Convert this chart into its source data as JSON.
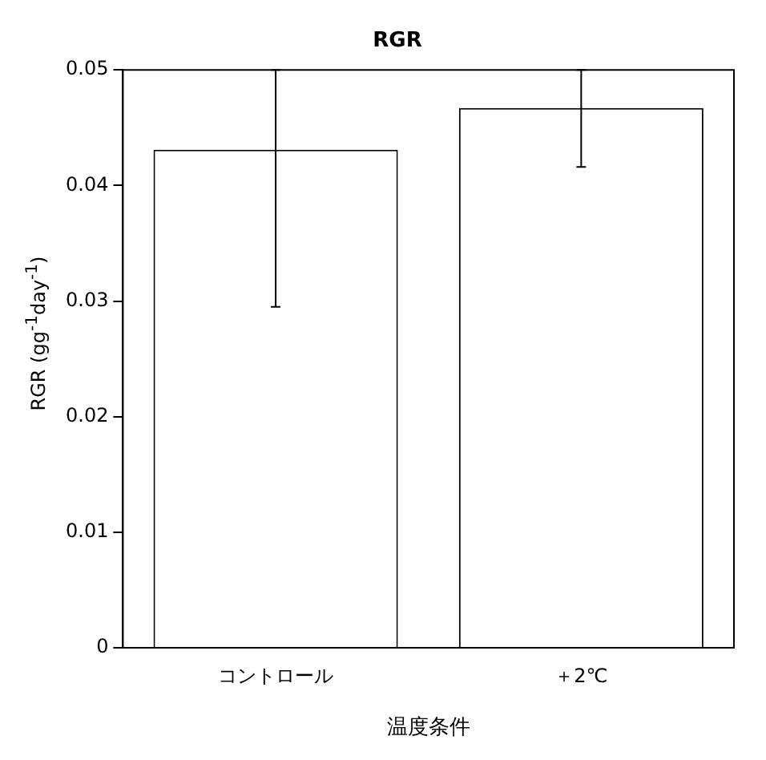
{
  "chart_data": {
    "type": "bar",
    "title": "RGR",
    "xlabel": "温度条件",
    "ylabel": "RGR (gg$^{-1}$day$^{-1}$)",
    "categories": [
      "コントロール",
      "＋2℃"
    ],
    "values": [
      0.0431,
      0.0467
    ],
    "errors": [
      [
        0.0295,
        0.05
      ],
      [
        0.0416,
        0.05
      ]
    ],
    "color": "#ffffff",
    "ylim": [
      0,
      0.05
    ],
    "yticks": [
      0,
      0.01,
      0.02,
      0.03,
      0.04,
      0.05
    ],
    "grid": false,
    "legend": false
  }
}
